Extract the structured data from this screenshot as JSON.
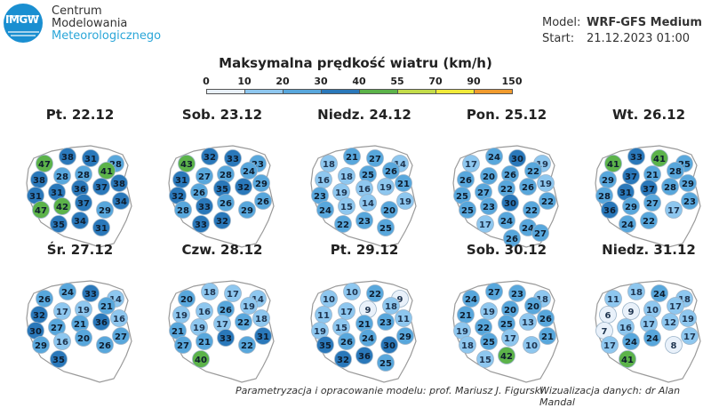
{
  "logo": {
    "text": "IMGW",
    "org_lines": [
      "Centrum",
      "Modelowania",
      "Meteorologicznego"
    ]
  },
  "model": {
    "label": "Model:",
    "value": "WRF-GFS Medium"
  },
  "start": {
    "label": "Start:",
    "value": "21.12.2023 01:00"
  },
  "title": "Maksymalna prędkość wiatru (km/h)",
  "scale": {
    "ticks": [
      "0",
      "10",
      "20",
      "30",
      "40",
      "55",
      "70",
      "90",
      "150"
    ],
    "tick_values": [
      0,
      10,
      20,
      30,
      40,
      55,
      70,
      90,
      150
    ],
    "colors": [
      "#e9f1fa",
      "#8ec7ef",
      "#58a7dc",
      "#2a78ba",
      "#5cb34a",
      "#c3dc4a",
      "#f1ea3a",
      "#f19b2e",
      "#d6262d"
    ]
  },
  "days": [
    {
      "label": "Pt. 22.12",
      "values": [
        47,
        38,
        31,
        28,
        38,
        28,
        28,
        41,
        38,
        31,
        31,
        36,
        37,
        34,
        47,
        42,
        37,
        29,
        35,
        34,
        31
      ]
    },
    {
      "label": "Sob. 23.12",
      "values": [
        43,
        32,
        33,
        23,
        31,
        27,
        28,
        24,
        29,
        32,
        26,
        35,
        32,
        26,
        28,
        33,
        26,
        29,
        33,
        32
      ]
    },
    {
      "label": "Niedz. 24.12",
      "values": [
        18,
        21,
        27,
        14,
        16,
        18,
        25,
        26,
        21,
        23,
        19,
        16,
        19,
        19,
        24,
        15,
        14,
        20,
        22,
        23,
        25
      ]
    },
    {
      "label": "Pon. 25.12",
      "values": [
        17,
        24,
        30,
        19,
        26,
        20,
        26,
        22,
        19,
        25,
        27,
        22,
        26,
        22,
        25,
        23,
        30,
        22,
        17,
        24,
        24,
        26,
        27
      ]
    },
    {
      "label": "Wt. 26.12",
      "values": [
        41,
        33,
        41,
        25,
        29,
        37,
        21,
        28,
        29,
        28,
        31,
        37,
        28,
        23,
        36,
        29,
        27,
        17,
        24,
        22
      ]
    },
    {
      "label": "Śr. 27.12",
      "values": [
        26,
        24,
        33,
        14,
        32,
        17,
        19,
        21,
        16,
        30,
        27,
        21,
        36,
        27,
        29,
        16,
        20,
        26,
        35
      ]
    },
    {
      "label": "Czw. 28.12",
      "values": [
        20,
        18,
        17,
        14,
        19,
        16,
        26,
        19,
        18,
        21,
        19,
        17,
        22,
        31,
        27,
        21,
        33,
        22,
        40
      ]
    },
    {
      "label": "Pt. 29.12",
      "values": [
        10,
        10,
        22,
        9,
        11,
        17,
        9,
        18,
        11,
        19,
        15,
        21,
        23,
        29,
        35,
        26,
        24,
        30,
        32,
        36,
        25
      ]
    },
    {
      "label": "Sob. 30.12",
      "values": [
        24,
        27,
        23,
        18,
        21,
        19,
        20,
        20,
        26,
        19,
        22,
        25,
        13,
        21,
        18,
        25,
        17,
        10,
        15,
        42
      ]
    },
    {
      "label": "Niedz. 31.12",
      "values": [
        11,
        18,
        24,
        18,
        6,
        9,
        10,
        17,
        19,
        7,
        16,
        17,
        12,
        17,
        17,
        24,
        24,
        8,
        41
      ]
    }
  ],
  "footer": {
    "left": "Parametryzacja i opracowanie modelu: prof. Mariusz J. Figurski",
    "right": "Wizualizacja danych: dr Alan Mandal"
  }
}
